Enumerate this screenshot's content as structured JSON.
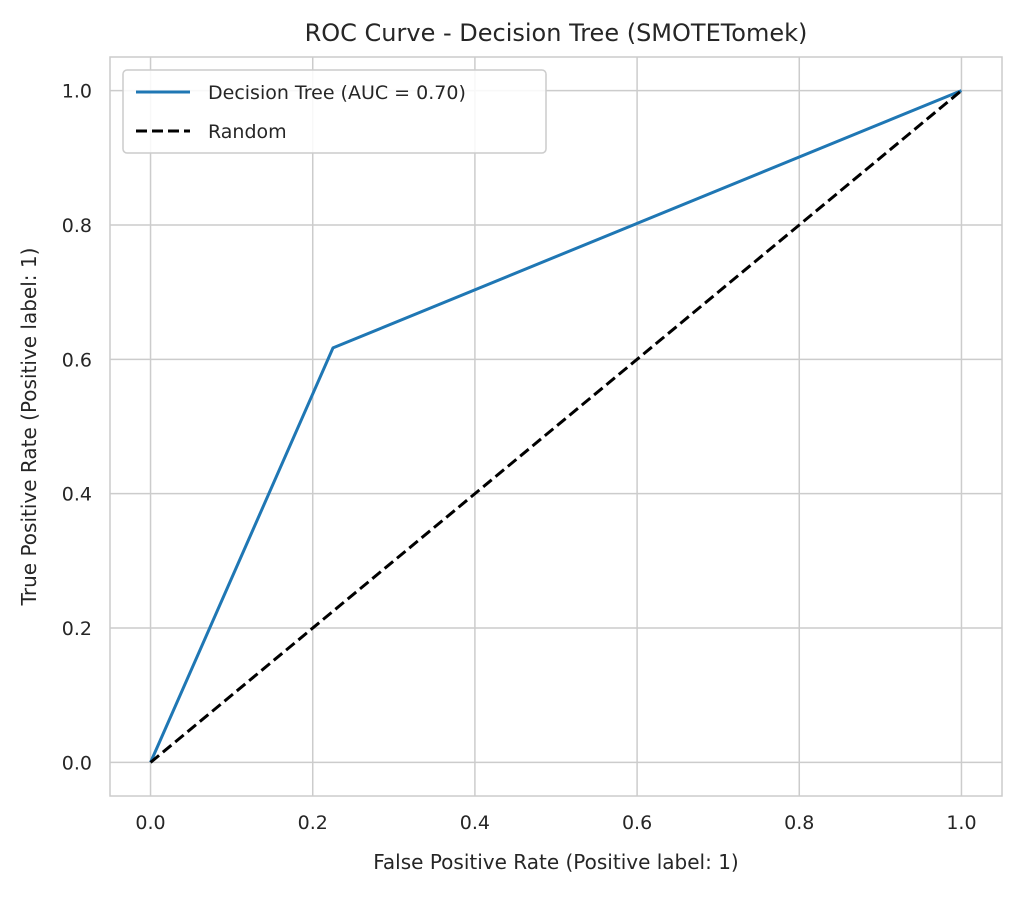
{
  "chart_data": {
    "type": "line",
    "title": "ROC Curve - Decision Tree (SMOTETomek)",
    "xlabel": "False Positive Rate (Positive label: 1)",
    "ylabel": "True Positive Rate (Positive label: 1)",
    "xlim": [
      -0.05,
      1.05
    ],
    "ylim": [
      -0.05,
      1.05
    ],
    "xticks": [
      0.0,
      0.2,
      0.4,
      0.6,
      0.8,
      1.0
    ],
    "yticks": [
      0.0,
      0.2,
      0.4,
      0.6,
      0.8,
      1.0
    ],
    "xtick_labels": [
      "0.0",
      "0.2",
      "0.4",
      "0.6",
      "0.8",
      "1.0"
    ],
    "ytick_labels": [
      "0.0",
      "0.2",
      "0.4",
      "0.6",
      "0.8",
      "1.0"
    ],
    "grid": true,
    "legend_position": "top-left",
    "series": [
      {
        "name": "Decision Tree (AUC = 0.70)",
        "color": "#1f77b4",
        "style": "solid",
        "x": [
          0.0,
          0.225,
          1.0
        ],
        "y": [
          0.0,
          0.617,
          1.0
        ]
      },
      {
        "name": "Random",
        "color": "#000000",
        "style": "dashed",
        "x": [
          0.0,
          1.0
        ],
        "y": [
          0.0,
          1.0
        ]
      }
    ]
  }
}
